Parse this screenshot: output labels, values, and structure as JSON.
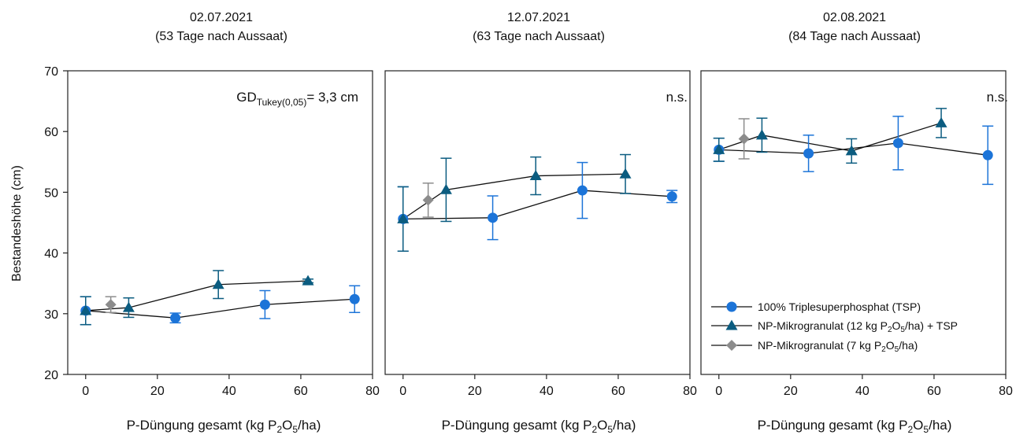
{
  "colors": {
    "tsp": "#1c74d8",
    "np12": "#0b5c80",
    "np7": "#8c8c8c",
    "line": "#111111"
  },
  "icons": {
    "tsp": "circle-marker",
    "np12": "triangle-marker",
    "np7": "diamond-marker"
  },
  "figure": {
    "ylabel": "Bestandeshöhe (cm)",
    "xlabel_main": "P-Düngung gesamt (kg P",
    "xlabel_sub": "2",
    "xlabel_mid": "O",
    "xlabel_sub2": "5",
    "xlabel_end": "/ha)"
  },
  "legend": {
    "tsp_label": "100% Triplesuperphosphat (TSP)",
    "np12_main": "NP-Mikrogranulat (12 kg P",
    "np12_end": "/ha) + TSP",
    "np7_main": "NP-Mikrogranulat (7 kg P",
    "np7_end": "/ha)",
    "sub2": "2",
    "o": "O",
    "sub5": "5"
  },
  "chart_data": [
    {
      "type": "line",
      "title": "02.07.2021",
      "subtitle": "(53 Tage nach Aussaat)",
      "annotation": {
        "main": "GD",
        "sub": "Tukey(0,05)",
        "end": "= 3,3 cm"
      },
      "xlabel": "P-Düngung gesamt (kg P2O5/ha)",
      "ylabel": "Bestandeshöhe (cm)",
      "xlim": [
        -5,
        80
      ],
      "ylim": [
        20,
        70
      ],
      "xticks": [
        0,
        20,
        40,
        60,
        80
      ],
      "yticks": [
        20,
        30,
        40,
        50,
        60,
        70
      ],
      "series": [
        {
          "name": "100% Triplesuperphosphat (TSP)",
          "key": "tsp",
          "marker": "circle",
          "x": [
            0,
            25,
            50,
            75
          ],
          "y": [
            30.5,
            29.3,
            31.5,
            32.4
          ],
          "err": [
            2.3,
            0.8,
            2.3,
            2.2
          ]
        },
        {
          "name": "NP-Mikrogranulat (12 kg P2O5/ha) + TSP",
          "key": "np12",
          "marker": "triangle",
          "x": [
            0,
            12,
            37,
            62
          ],
          "y": [
            30.5,
            31.0,
            34.8,
            35.4
          ],
          "err": [
            2.3,
            1.6,
            2.3,
            0.3
          ]
        },
        {
          "name": "NP-Mikrogranulat (7 kg P2O5/ha)",
          "key": "np7",
          "marker": "diamond",
          "x": [
            7
          ],
          "y": [
            31.5
          ],
          "err": [
            1.3
          ]
        }
      ]
    },
    {
      "type": "line",
      "title": "12.07.2021",
      "subtitle": "(63 Tage nach Aussaat)",
      "annotation": {
        "main": "n.s.",
        "sub": "",
        "end": ""
      },
      "xlabel": "P-Düngung gesamt (kg P2O5/ha)",
      "xlim": [
        -5,
        80
      ],
      "ylim": [
        20,
        70
      ],
      "xticks": [
        0,
        20,
        40,
        60,
        80
      ],
      "series": [
        {
          "name": "100% Triplesuperphosphat (TSP)",
          "key": "tsp",
          "marker": "circle",
          "x": [
            0,
            25,
            50,
            75
          ],
          "y": [
            45.6,
            45.8,
            50.3,
            49.3
          ],
          "err": [
            5.3,
            3.6,
            4.6,
            1.0
          ]
        },
        {
          "name": "NP-Mikrogranulat (12 kg P2O5/ha) + TSP",
          "key": "np12",
          "marker": "triangle",
          "x": [
            0,
            12,
            37,
            62
          ],
          "y": [
            45.6,
            50.4,
            52.7,
            53.0
          ],
          "err": [
            5.3,
            5.2,
            3.1,
            3.2
          ]
        },
        {
          "name": "NP-Mikrogranulat (7 kg P2O5/ha)",
          "key": "np7",
          "marker": "diamond",
          "x": [
            7
          ],
          "y": [
            48.7
          ],
          "err": [
            2.8
          ]
        }
      ]
    },
    {
      "type": "line",
      "title": "02.08.2021",
      "subtitle": "(84 Tage nach Aussaat)",
      "annotation": {
        "main": "n.s.",
        "sub": "",
        "end": ""
      },
      "xlabel": "P-Düngung gesamt (kg P2O5/ha)",
      "xlim": [
        -5,
        80
      ],
      "ylim": [
        20,
        70
      ],
      "xticks": [
        0,
        20,
        40,
        60,
        80
      ],
      "series": [
        {
          "name": "100% Triplesuperphosphat (TSP)",
          "key": "tsp",
          "marker": "circle",
          "x": [
            0,
            25,
            50,
            75
          ],
          "y": [
            57.0,
            56.4,
            58.1,
            56.1
          ],
          "err": [
            1.9,
            3.0,
            4.4,
            4.8
          ]
        },
        {
          "name": "NP-Mikrogranulat (12 kg P2O5/ha) + TSP",
          "key": "np12",
          "marker": "triangle",
          "x": [
            0,
            12,
            37,
            62
          ],
          "y": [
            57.0,
            59.4,
            56.8,
            61.4
          ],
          "err": [
            1.9,
            2.8,
            2.0,
            2.4
          ]
        },
        {
          "name": "NP-Mikrogranulat (7 kg P2O5/ha)",
          "key": "np7",
          "marker": "diamond",
          "x": [
            7
          ],
          "y": [
            58.8
          ],
          "err": [
            3.3
          ]
        }
      ]
    }
  ]
}
